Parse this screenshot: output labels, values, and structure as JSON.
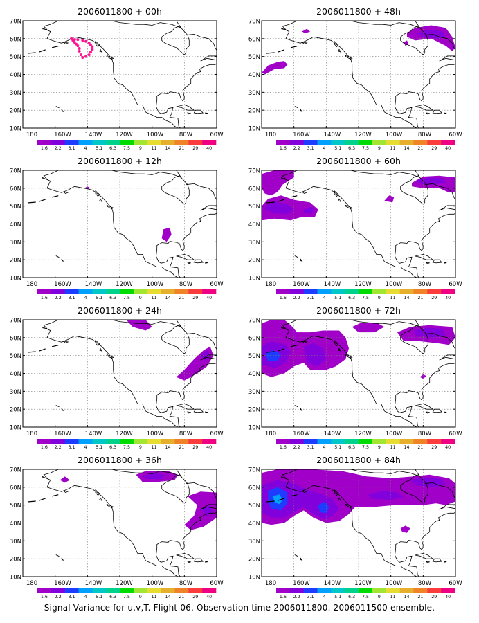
{
  "caption": "Signal Variance for u,v,T. Flight 06. Observation time 2006011800. 2006011500 ensemble.",
  "lat_labels": [
    "70N",
    "60N",
    "50N",
    "40N",
    "30N",
    "20N",
    "10N"
  ],
  "lon_labels": [
    "180",
    "160W",
    "140W",
    "120W",
    "100W",
    "80W",
    "60W"
  ],
  "legend": {
    "colors": [
      "#a000c8",
      "#8200dc",
      "#1e3cff",
      "#00a0ff",
      "#00c8c8",
      "#00d28c",
      "#00dc00",
      "#a0e632",
      "#e6dc32",
      "#e6af2d",
      "#f08228",
      "#fa3c3c",
      "#f00082"
    ],
    "labels": [
      "1.6",
      "2.2",
      "3.1",
      "4",
      "5.1",
      "6.3",
      "7.5",
      "9",
      "11",
      "14",
      "21",
      "29",
      "40"
    ]
  },
  "palette": {
    "light": "#a000c8",
    "mid": "#8200dc",
    "dark": "#1e3cff",
    "deep": "#00a0ff",
    "track": "#ff1493"
  },
  "panels": [
    {
      "id": "p00",
      "title": "2006011800 + 00h"
    },
    {
      "id": "p48",
      "title": "2006011800 + 48h"
    },
    {
      "id": "p12",
      "title": "2006011800 + 12h"
    },
    {
      "id": "p60",
      "title": "2006011800 + 60h"
    },
    {
      "id": "p24",
      "title": "2006011800 + 24h"
    },
    {
      "id": "p72",
      "title": "2006011800 + 72h"
    },
    {
      "id": "p36",
      "title": "2006011800 + 36h"
    },
    {
      "id": "p84",
      "title": "2006011800 + 84h"
    }
  ]
}
